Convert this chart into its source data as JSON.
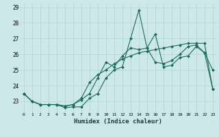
{
  "xlabel": "Humidex (Indice chaleur)",
  "bg_color": "#cce8e8",
  "grid_color": "#aad4d4",
  "line_color": "#1a6b5a",
  "x_values": [
    0,
    1,
    2,
    3,
    4,
    5,
    6,
    7,
    8,
    9,
    10,
    11,
    12,
    13,
    14,
    15,
    16,
    17,
    18,
    19,
    20,
    21,
    22,
    23
  ],
  "series": [
    [
      23.5,
      23.0,
      22.8,
      22.8,
      22.8,
      22.6,
      22.65,
      22.65,
      23.2,
      23.5,
      24.5,
      25.0,
      25.2,
      27.0,
      28.8,
      26.4,
      27.3,
      25.2,
      25.3,
      25.8,
      25.9,
      26.5,
      26.1,
      25.0
    ],
    [
      23.5,
      23.0,
      22.8,
      22.8,
      22.8,
      22.7,
      22.8,
      23.1,
      23.5,
      24.5,
      25.5,
      25.2,
      25.9,
      26.4,
      26.3,
      26.4,
      25.5,
      25.4,
      25.6,
      26.0,
      26.5,
      26.6,
      26.1,
      23.8
    ],
    [
      23.5,
      23.0,
      22.8,
      22.8,
      22.8,
      22.7,
      22.8,
      23.2,
      24.2,
      24.7,
      25.0,
      25.4,
      25.7,
      25.9,
      26.1,
      26.2,
      26.3,
      26.4,
      26.5,
      26.6,
      26.7,
      26.7,
      26.7,
      23.8
    ]
  ],
  "ylim": [
    22.3,
    29.2
  ],
  "yticks": [
    23,
    24,
    25,
    26,
    27,
    28,
    29
  ],
  "xticks": [
    0,
    1,
    2,
    3,
    4,
    5,
    6,
    7,
    8,
    9,
    10,
    11,
    12,
    13,
    14,
    15,
    16,
    17,
    18,
    19,
    20,
    21,
    22,
    23
  ],
  "marker": "D",
  "marker_size": 2.0,
  "line_width": 0.8
}
